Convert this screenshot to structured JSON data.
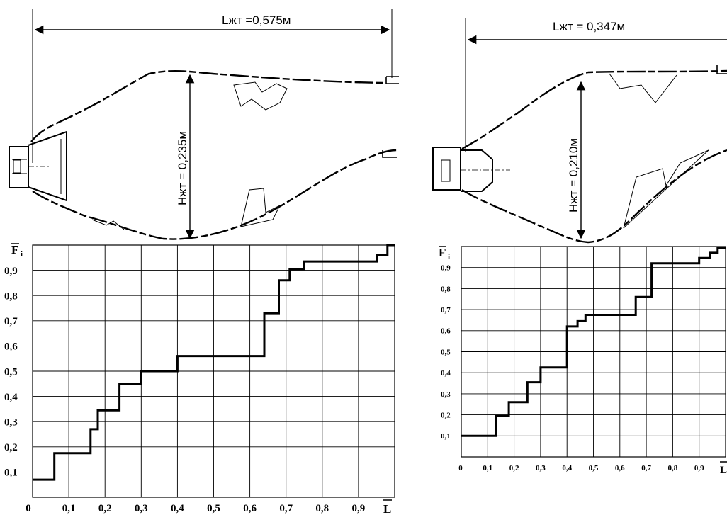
{
  "left": {
    "length_label": "Lжт =0,575м",
    "height_label": "Hжт = 0,235м",
    "y_axis_label": "F",
    "y_axis_sub": "i",
    "x_axis_label": "L"
  },
  "right": {
    "length_label": "Lжт = 0,347м",
    "height_label": "Hжт = 0,210м",
    "y_axis_label": "F",
    "y_axis_sub": "i",
    "x_axis_label": "L"
  },
  "chart_data": [
    {
      "type": "line",
      "step": true,
      "x": [
        0,
        0.06,
        0.06,
        0.16,
        0.16,
        0.18,
        0.18,
        0.24,
        0.24,
        0.3,
        0.3,
        0.4,
        0.4,
        0.64,
        0.64,
        0.68,
        0.68,
        0.71,
        0.71,
        0.75,
        0.75,
        0.95,
        0.95,
        0.98,
        0.98,
        1.0
      ],
      "y": [
        0.07,
        0.07,
        0.175,
        0.175,
        0.27,
        0.27,
        0.345,
        0.345,
        0.45,
        0.45,
        0.5,
        0.5,
        0.56,
        0.56,
        0.73,
        0.73,
        0.86,
        0.86,
        0.905,
        0.905,
        0.935,
        0.935,
        0.96,
        0.96,
        1.0,
        1.0
      ],
      "xlim": [
        0,
        1
      ],
      "ylim": [
        0,
        1
      ],
      "x_ticks": [
        "0",
        "0,1",
        "0,2",
        "0,3",
        "0,4",
        "0,5",
        "0,6",
        "0,7",
        "0,8",
        "0,9"
      ],
      "y_ticks": [
        "0,1",
        "0,2",
        "0,3",
        "0,4",
        "0,5",
        "0,6",
        "0,7",
        "0,8",
        "0,9"
      ],
      "grid": true
    },
    {
      "type": "line",
      "step": true,
      "x": [
        0,
        0.13,
        0.13,
        0.18,
        0.18,
        0.25,
        0.25,
        0.3,
        0.3,
        0.4,
        0.4,
        0.44,
        0.44,
        0.47,
        0.47,
        0.66,
        0.66,
        0.72,
        0.72,
        0.9,
        0.9,
        0.94,
        0.94,
        0.97,
        0.97,
        1.0
      ],
      "y": [
        0.1,
        0.1,
        0.195,
        0.195,
        0.26,
        0.26,
        0.355,
        0.355,
        0.425,
        0.425,
        0.62,
        0.62,
        0.645,
        0.645,
        0.675,
        0.675,
        0.76,
        0.76,
        0.92,
        0.92,
        0.945,
        0.945,
        0.97,
        0.97,
        0.995,
        0.995
      ],
      "xlim": [
        0,
        1
      ],
      "ylim": [
        0,
        1
      ],
      "x_ticks": [
        "0",
        "0,1",
        "0,2",
        "0,3",
        "0,4",
        "0,5",
        "0,6",
        "0,7",
        "0,8",
        "0,9"
      ],
      "y_ticks": [
        "0,1",
        "0,2",
        "0,3",
        "0,4",
        "0,5",
        "0,6",
        "0,7",
        "0,8",
        "0,9"
      ],
      "grid": true
    }
  ]
}
